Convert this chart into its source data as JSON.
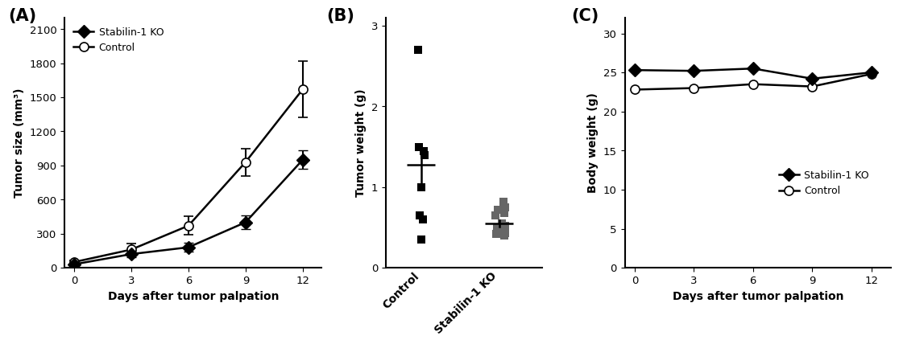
{
  "panel_A": {
    "xlabel": "Days after tumor palpation",
    "ylabel": "Tumor size (mm³)",
    "days": [
      0,
      3,
      6,
      9,
      12
    ],
    "ko_mean": [
      30,
      120,
      180,
      400,
      950
    ],
    "ko_err": [
      10,
      30,
      40,
      60,
      80
    ],
    "ctrl_mean": [
      50,
      160,
      370,
      930,
      1570
    ],
    "ctrl_err": [
      15,
      50,
      80,
      120,
      250
    ],
    "ylim": [
      0,
      2200
    ],
    "yticks": [
      0,
      300,
      600,
      900,
      1200,
      1500,
      1800,
      2100
    ],
    "legend_ko": "Stabilin-1 KO",
    "legend_ctrl": "Control"
  },
  "panel_B": {
    "ylabel": "Tumor weight (g)",
    "xlabels": [
      "Control",
      "Stabilin-1 KO"
    ],
    "ctrl_points": [
      2.7,
      1.5,
      1.45,
      1.4,
      1.0,
      0.65,
      0.6,
      0.35
    ],
    "ctrl_mean": 1.28,
    "ctrl_sem_lo": 0.22,
    "ctrl_sem_hi": 0.22,
    "ko_points": [
      0.82,
      0.75,
      0.72,
      0.68,
      0.65,
      0.55,
      0.52,
      0.5,
      0.47,
      0.43,
      0.42,
      0.4
    ],
    "ko_mean": 0.55,
    "ko_sem_lo": 0.04,
    "ko_sem_hi": 0.04,
    "ylim": [
      0,
      3.1
    ],
    "yticks": [
      0,
      1,
      2,
      3
    ]
  },
  "panel_C": {
    "xlabel": "Days after tumor palpation",
    "ylabel": "Body weight (g)",
    "days": [
      0,
      3,
      6,
      9,
      12
    ],
    "ko_mean": [
      25.3,
      25.2,
      25.5,
      24.2,
      25.0
    ],
    "ctrl_mean": [
      22.8,
      23.0,
      23.5,
      23.2,
      24.8
    ],
    "ylim": [
      0,
      32
    ],
    "yticks": [
      0,
      5,
      10,
      15,
      20,
      25,
      30
    ],
    "legend_ko": "Stabilin-1 KO",
    "legend_ctrl": "Control"
  },
  "bg_color": "#ffffff",
  "ctrl_scatter_color": "#000000",
  "ko_scatter_color": "#666666"
}
